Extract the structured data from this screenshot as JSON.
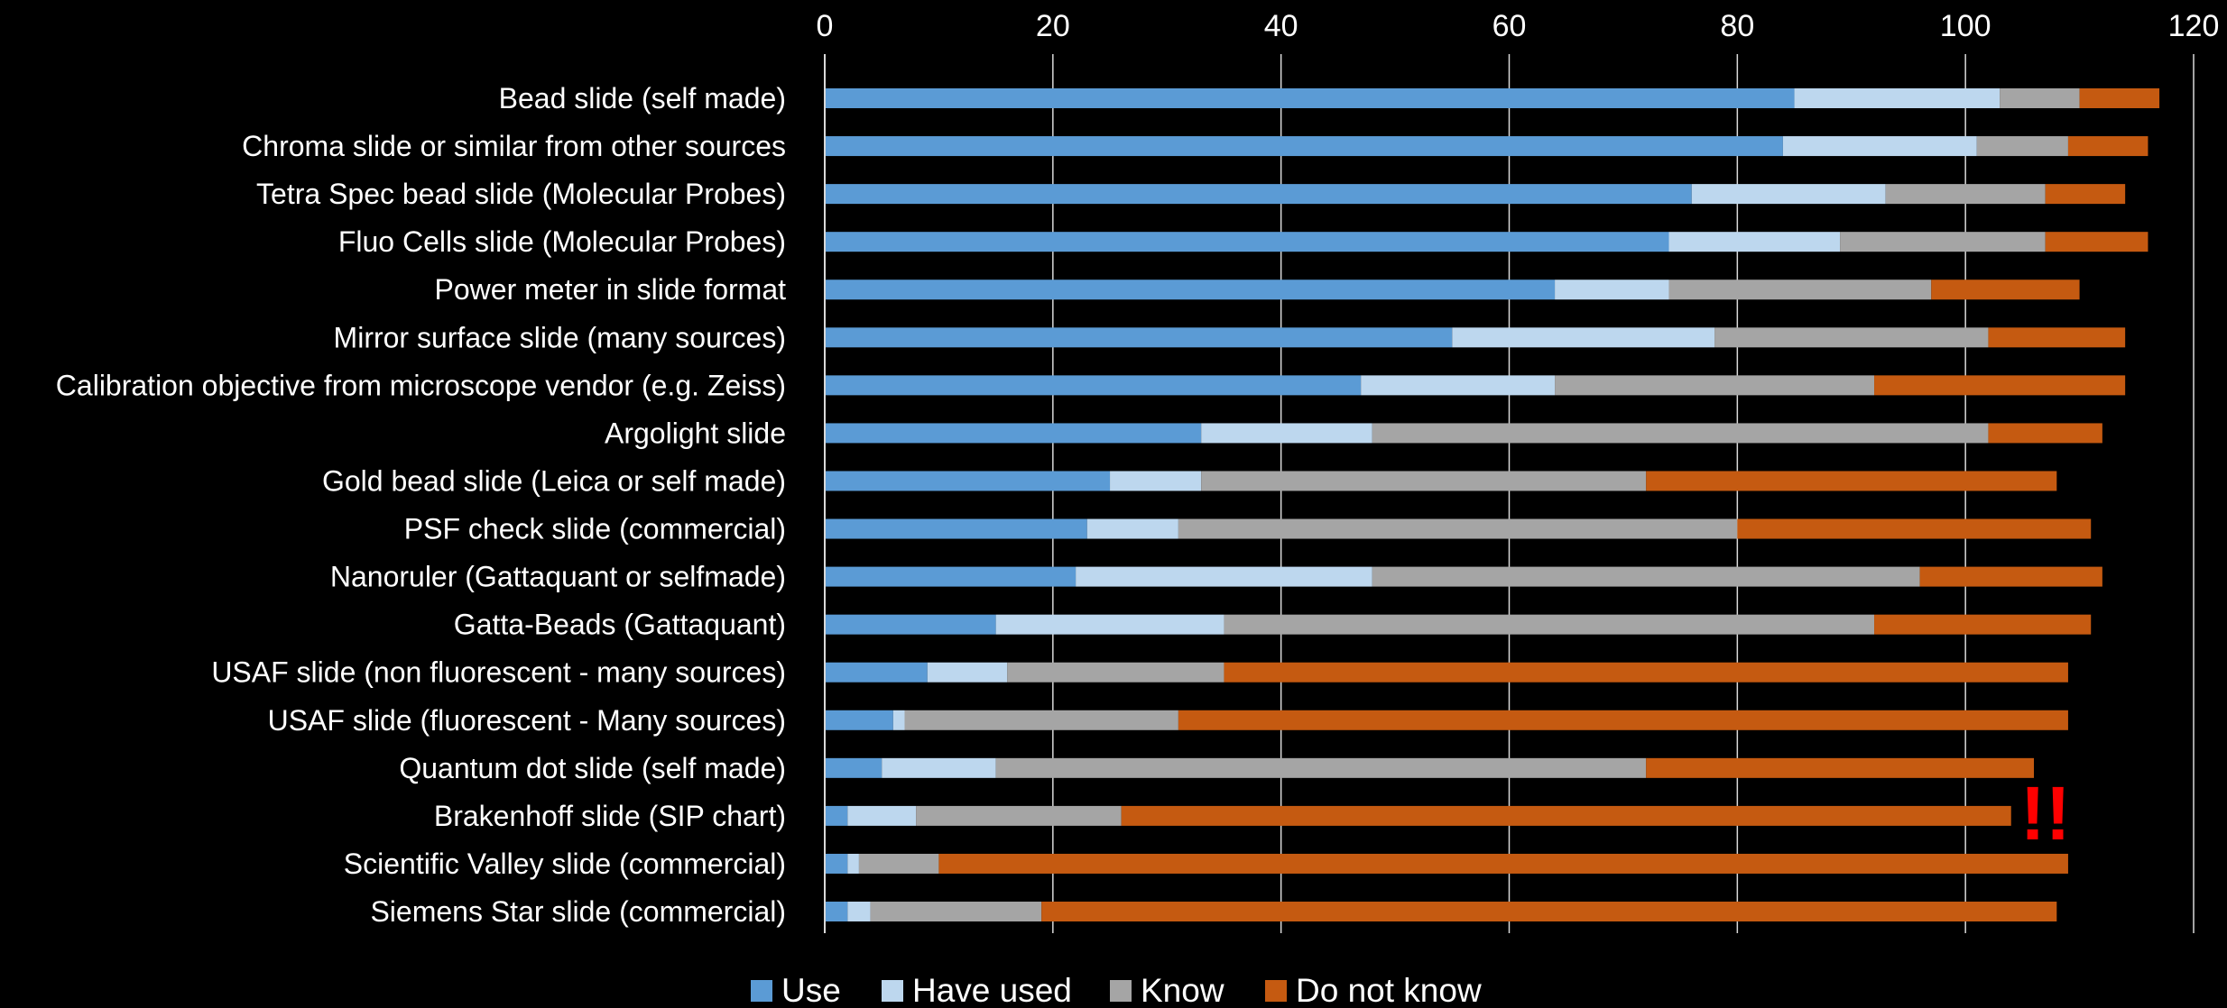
{
  "chart_data": {
    "type": "bar",
    "orientation": "horizontal",
    "stacked": true,
    "categories": [
      "Bead slide (self made)",
      "Chroma slide or similar from other sources",
      "Tetra Spec bead slide (Molecular Probes)",
      "Fluo Cells slide (Molecular Probes)",
      "Power meter in slide format",
      "Mirror surface slide (many sources)",
      "Calibration objective from microscope vendor (e.g. Zeiss)",
      "Argolight slide",
      "Gold bead slide (Leica or self made)",
      "PSF check slide (commercial)",
      "Nanoruler (Gattaquant or selfmade)",
      "Gatta-Beads (Gattaquant)",
      "USAF slide (non fluorescent - many sources)",
      "USAF slide (fluorescent - Many sources)",
      "Quantum dot slide (self made)",
      "Brakenhoff slide (SIP chart)",
      "Scientific Valley slide (commercial)",
      "Siemens Star slide (commercial)"
    ],
    "series": [
      {
        "name": "Use",
        "color": "#5b9bd5",
        "values": [
          85,
          84,
          76,
          74,
          64,
          55,
          47,
          33,
          25,
          23,
          22,
          15,
          9,
          6,
          5,
          2,
          2,
          2
        ]
      },
      {
        "name": "Have used",
        "color": "#bdd7ee",
        "values": [
          18,
          17,
          17,
          15,
          10,
          23,
          17,
          15,
          8,
          8,
          26,
          20,
          7,
          1,
          10,
          6,
          1,
          2
        ]
      },
      {
        "name": "Know",
        "color": "#a5a5a5",
        "values": [
          7,
          8,
          14,
          18,
          23,
          24,
          28,
          54,
          39,
          49,
          48,
          57,
          19,
          24,
          57,
          18,
          7,
          15
        ]
      },
      {
        "name": "Do not know",
        "color": "#c55a11",
        "values": [
          7,
          7,
          7,
          9,
          13,
          12,
          22,
          10,
          36,
          31,
          16,
          19,
          74,
          78,
          34,
          78,
          99,
          89
        ]
      }
    ],
    "xlim": [
      0,
      120
    ],
    "xticks": [
      0,
      20,
      40,
      60,
      80,
      100,
      120
    ],
    "xaxis_position": "top",
    "grid": "vertical",
    "legend_position": "bottom",
    "title": "",
    "xlabel": "",
    "ylabel": "",
    "annotations": [
      {
        "text": "!!",
        "category": "Brakenhoff slide (SIP chart)",
        "color": "#ff0000"
      }
    ]
  }
}
